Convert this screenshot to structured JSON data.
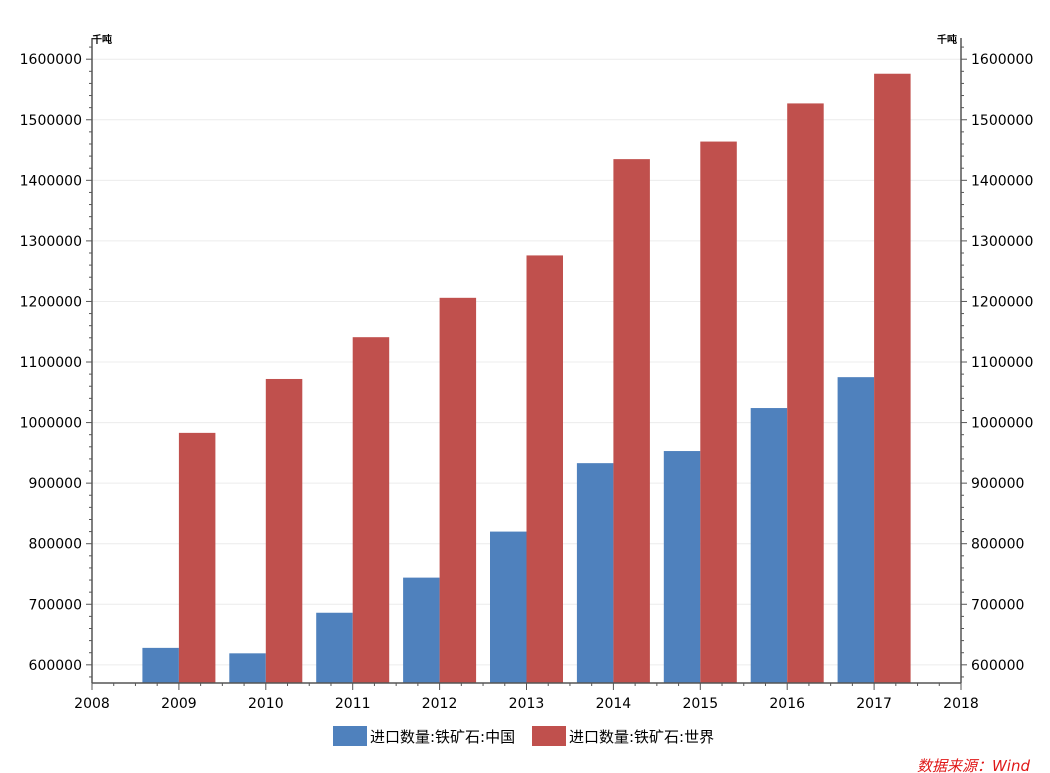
{
  "chart_data": {
    "type": "bar",
    "title": "",
    "unit_left": "千吨",
    "unit_right": "千吨",
    "categories": [
      "2009",
      "2010",
      "2011",
      "2012",
      "2013",
      "2014",
      "2015",
      "2016",
      "2017"
    ],
    "x_ticks": [
      "2008",
      "2009",
      "2010",
      "2011",
      "2012",
      "2013",
      "2014",
      "2015",
      "2016",
      "2017",
      "2018"
    ],
    "xlim": [
      2008,
      2018
    ],
    "ylim": [
      570000,
      1635000
    ],
    "y_ticks": [
      600000,
      700000,
      800000,
      900000,
      1000000,
      1100000,
      1200000,
      1300000,
      1400000,
      1500000,
      1600000
    ],
    "y_tick_labels": [
      "600000",
      "700000",
      "800000",
      "900000",
      "1000000",
      "1100000",
      "1200000",
      "1300000",
      "1400000",
      "1500000",
      "1600000"
    ],
    "series": [
      {
        "name": "进口数量:铁矿石:中国",
        "color": "#4f81bd",
        "values": [
          628000,
          619000,
          686000,
          744000,
          820000,
          933000,
          953000,
          1024000,
          1075000
        ]
      },
      {
        "name": "进口数量:铁矿石:世界",
        "color": "#c0504d",
        "values": [
          983000,
          1072000,
          1141000,
          1206000,
          1276000,
          1435000,
          1464000,
          1527000,
          1576000
        ]
      }
    ],
    "legend_position": "bottom",
    "grid": true,
    "source": "数据来源：Wind",
    "source_color": "#e01818"
  }
}
